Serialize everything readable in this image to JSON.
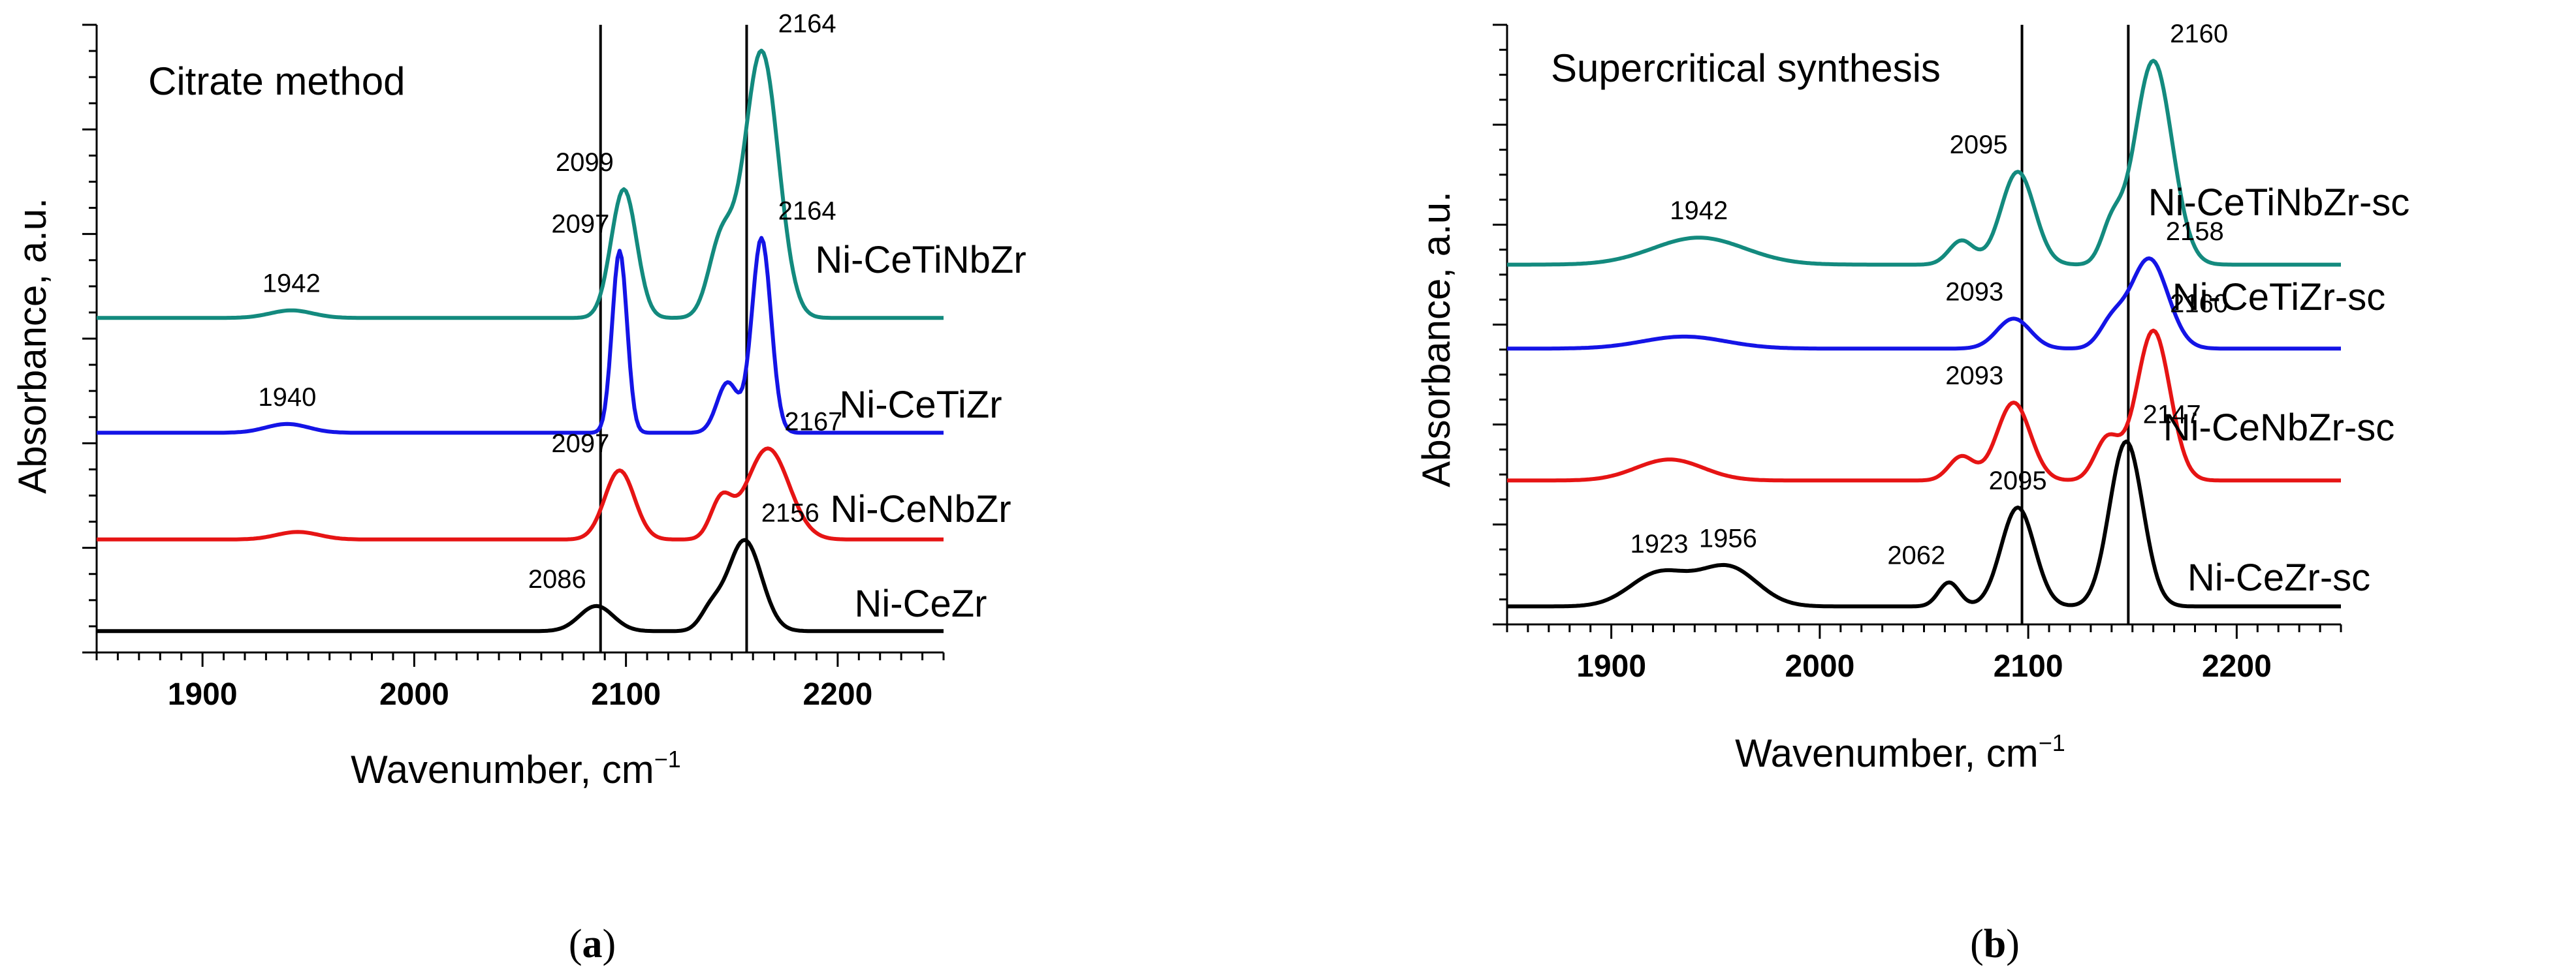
{
  "chart_data": [
    {
      "type": "line",
      "panel_label_prefix": "(",
      "panel_letter": "a",
      "panel_label_suffix": ")",
      "title": "Citrate method",
      "xlabel": "Wavenumber, cm",
      "xlabel_sup": "−1",
      "ylabel": "Absorbance, a.u.",
      "xlim": [
        1850,
        2250
      ],
      "x_ticks": [
        1900,
        2000,
        2100,
        2200
      ],
      "x_tick_labels": [
        "1900",
        "2000",
        "2100",
        "2200"
      ],
      "ylim": [
        0,
        1
      ],
      "y_tick_labels_shown": false,
      "vertical_lines": [
        2088,
        2157
      ],
      "series": [
        {
          "name": "Ni-CeTiNbZr",
          "color": "#138a7e",
          "offset": 0.533,
          "base": 0,
          "peaks": [
            [
              1942,
              0.012,
              10
            ],
            [
              2099,
              0.205,
              6
            ],
            [
              2164,
              0.425,
              8
            ]
          ],
          "shoulders": [
            [
              2145,
              0.12,
              6
            ]
          ],
          "peak_labels": [
            {
              "x": 1942,
              "text": "1942"
            },
            {
              "x": 2099,
              "text": "2099"
            },
            {
              "x": 2164,
              "text": "2164"
            }
          ]
        },
        {
          "name": "Ni-CeTiZr",
          "color": "#1414e6",
          "offset": 0.35,
          "base": 0,
          "peaks": [
            [
              1940,
              0.014,
              10
            ],
            [
              2097,
              0.29,
              3.5
            ],
            [
              2164,
              0.31,
              4.5
            ]
          ],
          "shoulders": [
            [
              2148,
              0.08,
              5
            ]
          ],
          "peak_labels": [
            {
              "x": 1940,
              "text": "1940"
            },
            {
              "x": 2097,
              "text": "2097"
            },
            {
              "x": 2164,
              "text": "2164"
            }
          ]
        },
        {
          "name": "Ni-CeNbZr",
          "color": "#e61414",
          "offset": 0.18,
          "base": 0,
          "peaks": [
            [
              1945,
              0.012,
              10
            ],
            [
              2097,
              0.11,
              7
            ],
            [
              2167,
              0.145,
              10
            ]
          ],
          "shoulders": [
            [
              2145,
              0.06,
              5
            ]
          ],
          "peak_labels": [
            {
              "x": 2097,
              "text": "2097"
            },
            {
              "x": 2167,
              "text": "2167"
            }
          ]
        },
        {
          "name": "Ni-CeZr",
          "color": "#000000",
          "offset": 0.03,
          "base": 0.004,
          "peaks": [
            [
              2086,
              0.04,
              8
            ],
            [
              2156,
              0.145,
              8
            ]
          ],
          "shoulders": [
            [
              2140,
              0.03,
              5
            ]
          ],
          "peak_labels": [
            {
              "x": 2086,
              "text": "2086"
            },
            {
              "x": 2156,
              "text": "2156"
            }
          ]
        }
      ]
    },
    {
      "type": "line",
      "panel_label_prefix": "(",
      "panel_letter": "b",
      "panel_label_suffix": ")",
      "title": "Supercritical synthesis",
      "xlabel": "Wavenumber, cm",
      "xlabel_sup": "−1",
      "ylabel": "Absorbance, a.u.",
      "xlim": [
        1850,
        2250
      ],
      "x_ticks": [
        1900,
        2000,
        2100,
        2200
      ],
      "x_tick_labels": [
        "1900",
        "2000",
        "2100",
        "2200"
      ],
      "ylim": [
        0,
        1
      ],
      "y_tick_labels_shown": false,
      "vertical_lines": [
        2097,
        2148
      ],
      "series": [
        {
          "name": "Ni-CeTiNbZr-sc",
          "color": "#138a7e",
          "offset": 0.6,
          "base": 0,
          "peaks": [
            [
              1942,
              0.045,
              22
            ],
            [
              2095,
              0.155,
              8
            ],
            [
              2160,
              0.34,
              9
            ]
          ],
          "shoulders": [
            [
              2068,
              0.04,
              6
            ],
            [
              2140,
              0.06,
              5
            ]
          ],
          "peak_labels": [
            {
              "x": 1942,
              "text": "1942"
            },
            {
              "x": 2095,
              "text": "2095"
            },
            {
              "x": 2160,
              "text": "2160"
            }
          ]
        },
        {
          "name": "Ni-CeTiZr-sc",
          "color": "#1414e6",
          "offset": 0.46,
          "base": 0,
          "peaks": [
            [
              1935,
              0.02,
              20
            ],
            [
              2093,
              0.05,
              8
            ],
            [
              2158,
              0.15,
              9
            ]
          ],
          "shoulders": [
            [
              2140,
              0.04,
              6
            ]
          ],
          "peak_labels": [
            {
              "x": 2093,
              "text": "2093"
            },
            {
              "x": 2158,
              "text": "2158"
            }
          ]
        },
        {
          "name": "Ni-CeNbZr-sc",
          "color": "#e61414",
          "offset": 0.24,
          "base": 0,
          "peaks": [
            [
              1928,
              0.035,
              16
            ],
            [
              2093,
              0.13,
              8
            ],
            [
              2160,
              0.25,
              8
            ]
          ],
          "shoulders": [
            [
              2068,
              0.04,
              6
            ],
            [
              2138,
              0.07,
              6
            ]
          ],
          "peak_labels": [
            {
              "x": 2093,
              "text": "2093"
            },
            {
              "x": 2160,
              "text": "2160"
            }
          ]
        },
        {
          "name": "Ni-CeZr-sc",
          "color": "#000000",
          "offset": 0.03,
          "base": 0,
          "peaks": [
            [
              1923,
              0.055,
              14
            ],
            [
              1956,
              0.065,
              14
            ],
            [
              2095,
              0.165,
              8
            ],
            [
              2147,
              0.275,
              8
            ]
          ],
          "shoulders": [
            [
              2062,
              0.04,
              5
            ]
          ],
          "peak_labels": [
            {
              "x": 1923,
              "text": "1923"
            },
            {
              "x": 1956,
              "text": "1956"
            },
            {
              "x": 2062,
              "text": "2062"
            },
            {
              "x": 2095,
              "text": "2095"
            },
            {
              "x": 2147,
              "text": "2147"
            }
          ]
        }
      ]
    }
  ]
}
